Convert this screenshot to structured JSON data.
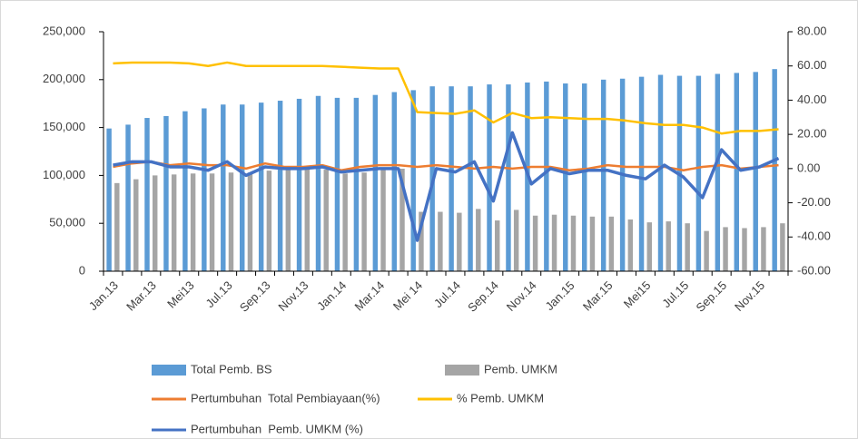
{
  "chart_data": {
    "type": "bar-line-combo",
    "categories": [
      "Jan.13",
      null,
      "Mar.13",
      null,
      "Mei13",
      null,
      "Jul.13",
      null,
      "Sep.13",
      null,
      "Nov.13",
      null,
      "Jan.14",
      null,
      "Mar.14",
      null,
      "Mei 14",
      null,
      "Jul.14",
      null,
      "Sep.14",
      null,
      "Nov.14",
      null,
      "Jan.15",
      null,
      "Mar.15",
      null,
      "Mei15",
      null,
      "Jul.15",
      null,
      "Sep.15",
      null,
      "Nov.15",
      null
    ],
    "series": [
      {
        "name": "Total Pemb. BS",
        "kind": "bar",
        "color": "#5b9bd5",
        "values": [
          149000,
          153000,
          160000,
          162000,
          167000,
          170000,
          174000,
          174000,
          176000,
          178000,
          180000,
          183000,
          181000,
          181000,
          184000,
          187000,
          189000,
          193000,
          193000,
          193000,
          195000,
          195000,
          197000,
          198000,
          196000,
          196000,
          200000,
          201000,
          203000,
          205000,
          204000,
          204000,
          206000,
          207000,
          208000,
          211000
        ]
      },
      {
        "name": "Pemb. UMKM",
        "kind": "bar",
        "color": "#a5a5a5",
        "values": [
          92000,
          96000,
          100000,
          101000,
          102000,
          102000,
          103000,
          103000,
          105000,
          106000,
          107000,
          106000,
          102000,
          103000,
          106000,
          107000,
          62000,
          62000,
          61000,
          65000,
          53000,
          64000,
          58000,
          59000,
          58000,
          57000,
          57000,
          54000,
          51000,
          52000,
          50000,
          42000,
          46000,
          45000,
          46000,
          50000
        ]
      },
      {
        "name": "Pertumbuhan  Total Pembiayaan(%)",
        "kind": "line",
        "axis": "y2",
        "color": "#ed7d31",
        "values": [
          1,
          3,
          4,
          2,
          3,
          2,
          2,
          0,
          3,
          1,
          1,
          2,
          -1,
          1,
          2,
          2,
          1,
          2,
          1,
          0,
          1,
          0,
          1,
          1,
          -1,
          0,
          2,
          1,
          1,
          1,
          -1,
          1,
          2,
          0,
          1,
          2
        ]
      },
      {
        "name": "% Pemb. UMKM",
        "kind": "line",
        "axis": "y2",
        "color": "#ffc000",
        "values": [
          61.5,
          62,
          62,
          62,
          61.5,
          60,
          62,
          60,
          60,
          60,
          60,
          60,
          59.5,
          59,
          58.5,
          58.5,
          33,
          32.5,
          32,
          34,
          27,
          32.5,
          29.5,
          30,
          29.5,
          29,
          29,
          28,
          26.5,
          25.5,
          25.5,
          24,
          20.5,
          22,
          22,
          23
        ]
      },
      {
        "name": "Pertumbuhan  Pemb. UMKM (%)",
        "kind": "line",
        "axis": "y2",
        "color": "#4472c4",
        "values": [
          2,
          4,
          4,
          1,
          1,
          -1,
          4,
          -4,
          1,
          0,
          0,
          1,
          -2,
          -1,
          0,
          0,
          -42,
          0,
          -2,
          4,
          -19,
          21,
          -9,
          0,
          -3,
          -1,
          -1,
          -4,
          -6,
          2,
          -5,
          -17,
          11,
          -1,
          1,
          6
        ]
      }
    ],
    "ylim": [
      0,
      250000
    ],
    "yticks": [
      0,
      {
        "value": 50000,
        "label": "50,000"
      },
      {
        "value": 100000,
        "label": "100,000"
      },
      {
        "value": 150000,
        "label": "150,000"
      },
      {
        "value": 200000,
        "label": "200,000"
      },
      {
        "value": 250000,
        "label": "250,000"
      }
    ],
    "y2lim": [
      -60,
      80
    ],
    "y2ticks": [
      {
        "value": -60,
        "label": "-60.00"
      },
      {
        "value": -40,
        "label": "-40.00"
      },
      {
        "value": -20,
        "label": "-20.00"
      },
      {
        "value": 0,
        "label": "0.00"
      },
      {
        "value": 20,
        "label": "20.00"
      },
      {
        "value": 40,
        "label": "40.00"
      },
      {
        "value": 60,
        "label": "60.00"
      },
      {
        "value": 80,
        "label": "80.00"
      }
    ],
    "legend": "bottom"
  }
}
